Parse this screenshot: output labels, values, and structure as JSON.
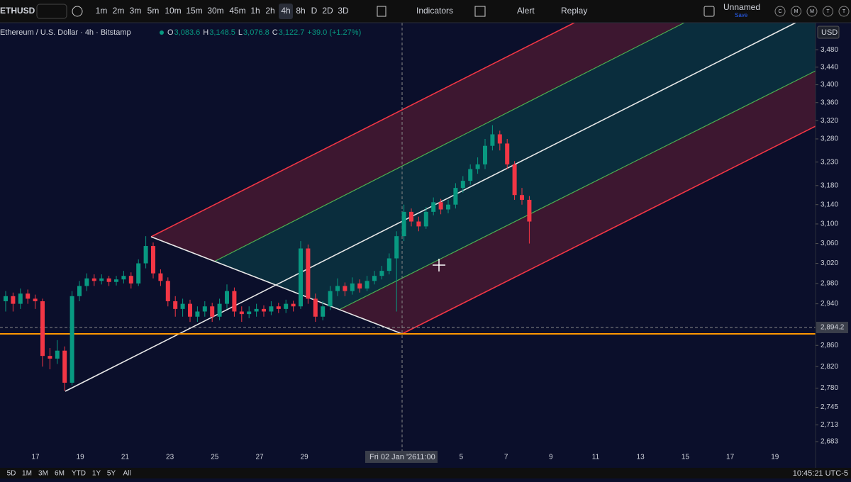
{
  "toolbar": {
    "symbol": "ETHUSD",
    "intervals": [
      "1m",
      "2m",
      "3m",
      "5m",
      "10m",
      "15m",
      "30m",
      "45m",
      "1h",
      "2h",
      "4h",
      "8h",
      "D",
      "2D",
      "3D"
    ],
    "active_interval": "4h",
    "indicators": "Indicators",
    "alert": "Alert",
    "replay": "Replay",
    "layout_name": "Unnamed",
    "layout_status": "Save",
    "letters": [
      "C",
      "M",
      "M",
      "T",
      "T"
    ]
  },
  "legend": {
    "title": "Ethereum / U.S. Dollar · 4h · Bitstamp",
    "ohlc": [
      {
        "k": "O",
        "v": "3,083.6"
      },
      {
        "k": "H",
        "v": "3,148.5"
      },
      {
        "k": "L",
        "v": "3,076.8"
      },
      {
        "k": "C",
        "v": "3,122.7"
      }
    ],
    "change": "+39.0 (+1.27%)"
  },
  "chart": {
    "log_scale": true,
    "ylim": [
      2643,
      3543
    ],
    "currency": "USD",
    "up_color": "#089981",
    "down_color": "#f23645",
    "yticks": [
      {
        "value": 3480,
        "label": "3,480"
      },
      {
        "value": 3440,
        "label": "3,440"
      },
      {
        "value": 3400,
        "label": "3,400"
      },
      {
        "value": 3360,
        "label": "3,360"
      },
      {
        "value": 3320,
        "label": "3,320"
      },
      {
        "value": 3280,
        "label": "3,280"
      },
      {
        "value": 3230,
        "label": "3,230"
      },
      {
        "value": 3180,
        "label": "3,180"
      },
      {
        "value": 3140,
        "label": "3,140"
      },
      {
        "value": 3100,
        "label": "3,100"
      },
      {
        "value": 3060,
        "label": "3,060"
      },
      {
        "value": 3020,
        "label": "3,020"
      },
      {
        "value": 2980,
        "label": "2,980"
      },
      {
        "value": 2940,
        "label": "2,940"
      },
      {
        "value": 2860,
        "label": "2,860"
      },
      {
        "value": 2820,
        "label": "2,820"
      },
      {
        "value": 2780,
        "label": "2,780"
      },
      {
        "value": 2745,
        "label": "2,745"
      },
      {
        "value": 2713,
        "label": "2,713"
      },
      {
        "value": 2683,
        "label": "2,683"
      }
    ],
    "crosshair_price": {
      "value": 2894.2,
      "label": "2,894.2"
    },
    "crosshair_date": "Fri 02 Jan '26",
    "crosshair_hour": "11:00",
    "time_labels": [
      "17",
      "19",
      "21",
      "23",
      "25",
      "27",
      "29",
      "5",
      "7",
      "9",
      "11",
      "13",
      "15",
      "17",
      "19"
    ],
    "candles": [
      [
        2945,
        2965,
        2925,
        2955
      ],
      [
        2955,
        2962,
        2925,
        2940
      ],
      [
        2940,
        2970,
        2930,
        2960
      ],
      [
        2960,
        2968,
        2940,
        2950
      ],
      [
        2950,
        2958,
        2930,
        2945
      ],
      [
        2945,
        2950,
        2820,
        2840
      ],
      [
        2840,
        2855,
        2815,
        2835
      ],
      [
        2835,
        2870,
        2825,
        2850
      ],
      [
        2850,
        2858,
        2775,
        2790
      ],
      [
        2790,
        2965,
        2785,
        2955
      ],
      [
        2955,
        2985,
        2945,
        2975
      ],
      [
        2975,
        3000,
        2965,
        2990
      ],
      [
        2990,
        2998,
        2975,
        2985
      ],
      [
        2985,
        2998,
        2978,
        2990
      ],
      [
        2990,
        2995,
        2975,
        2983
      ],
      [
        2983,
        2995,
        2976,
        2988
      ],
      [
        2988,
        3005,
        2980,
        2995
      ],
      [
        2995,
        3002,
        2970,
        2980
      ],
      [
        2980,
        3028,
        2975,
        3020
      ],
      [
        3020,
        3075,
        3010,
        3055
      ],
      [
        3055,
        3062,
        2990,
        3000
      ],
      [
        3000,
        3008,
        2975,
        2985
      ],
      [
        2985,
        2992,
        2935,
        2945
      ],
      [
        2945,
        2955,
        2915,
        2930
      ],
      [
        2930,
        2950,
        2915,
        2940
      ],
      [
        2940,
        2948,
        2905,
        2915
      ],
      [
        2915,
        2935,
        2905,
        2925
      ],
      [
        2925,
        2945,
        2915,
        2935
      ],
      [
        2935,
        2942,
        2905,
        2915
      ],
      [
        2915,
        2950,
        2908,
        2940
      ],
      [
        2940,
        2978,
        2930,
        2965
      ],
      [
        2965,
        2972,
        2915,
        2925
      ],
      [
        2925,
        2935,
        2905,
        2920
      ],
      [
        2920,
        2935,
        2912,
        2925
      ],
      [
        2925,
        2940,
        2915,
        2930
      ],
      [
        2930,
        2937,
        2915,
        2925
      ],
      [
        2925,
        2945,
        2918,
        2935
      ],
      [
        2935,
        2942,
        2922,
        2930
      ],
      [
        2930,
        2948,
        2922,
        2940
      ],
      [
        2940,
        2946,
        2925,
        2935
      ],
      [
        2935,
        3065,
        2930,
        3050
      ],
      [
        3050,
        3058,
        2940,
        2950
      ],
      [
        2950,
        2960,
        2905,
        2915
      ],
      [
        2915,
        2945,
        2908,
        2935
      ],
      [
        2935,
        2975,
        2928,
        2965
      ],
      [
        2965,
        2990,
        2955,
        2975
      ],
      [
        2975,
        2982,
        2955,
        2965
      ],
      [
        2965,
        2992,
        2958,
        2980
      ],
      [
        2980,
        2988,
        2962,
        2970
      ],
      [
        2970,
        2995,
        2965,
        2985
      ],
      [
        2985,
        3005,
        2978,
        2995
      ],
      [
        2995,
        3015,
        2988,
        3005
      ],
      [
        3005,
        3040,
        2998,
        3030
      ],
      [
        3030,
        3085,
        2925,
        3075
      ],
      [
        3075,
        3140,
        3065,
        3125
      ],
      [
        3125,
        3132,
        3095,
        3105
      ],
      [
        3105,
        3115,
        3085,
        3095
      ],
      [
        3095,
        3135,
        3090,
        3125
      ],
      [
        3125,
        3155,
        3118,
        3145
      ],
      [
        3145,
        3152,
        3120,
        3130
      ],
      [
        3130,
        3150,
        3122,
        3140
      ],
      [
        3140,
        3185,
        3132,
        3175
      ],
      [
        3175,
        3200,
        3165,
        3190
      ],
      [
        3190,
        3225,
        3182,
        3215
      ],
      [
        3215,
        3240,
        3205,
        3225
      ],
      [
        3225,
        3280,
        3215,
        3265
      ],
      [
        3265,
        3310,
        3255,
        3290
      ],
      [
        3290,
        3298,
        3255,
        3270
      ],
      [
        3270,
        3280,
        3215,
        3225
      ],
      [
        3225,
        3232,
        3150,
        3160
      ],
      [
        3160,
        3175,
        3140,
        3150
      ],
      [
        3150,
        3158,
        3060,
        3105
      ]
    ]
  },
  "bottom": {
    "ranges": [
      "5D",
      "1M",
      "3M",
      "6M",
      "YTD",
      "1Y",
      "5Y",
      "All"
    ],
    "clock": "10:45:21 UTC-5"
  }
}
